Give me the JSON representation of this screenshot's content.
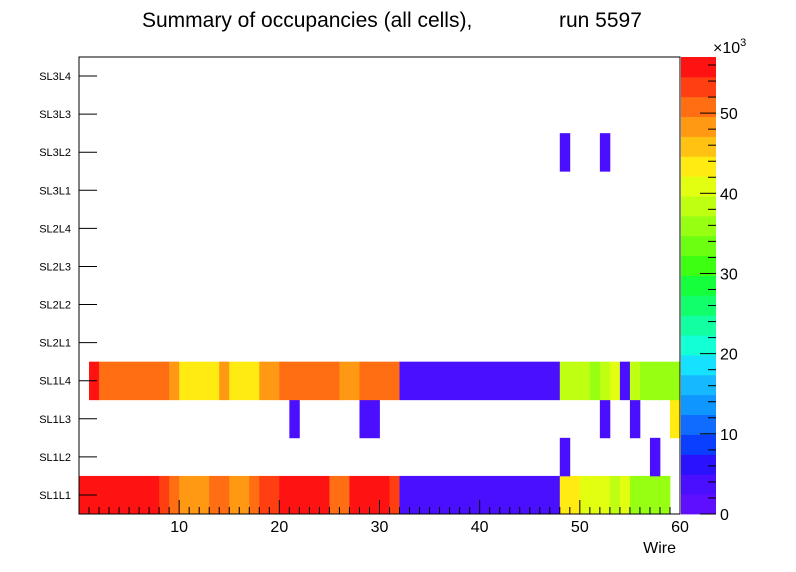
{
  "chart_data": {
    "type": "heatmap",
    "title": "Summary of occupancies (all cells),",
    "run_label": "run 5597",
    "xlabel": "Wire",
    "xlim": [
      0,
      60
    ],
    "x_ticks": [
      10,
      20,
      30,
      40,
      50,
      60
    ],
    "y_categories": [
      "SL1L1",
      "SL1L2",
      "SL1L3",
      "SL1L4",
      "SL2L1",
      "SL2L2",
      "SL2L3",
      "SL2L4",
      "SL3L1",
      "SL3L2",
      "SL3L3",
      "SL3L4"
    ],
    "z_label_prefix": "×10",
    "z_exponent": "3",
    "z_range": [
      0,
      57
    ],
    "z_ticks": [
      0,
      10,
      20,
      30,
      40,
      50
    ],
    "palette": [
      "#5e0fff",
      "#4b0fff",
      "#2b12ff",
      "#0b3fff",
      "#0f6cff",
      "#0f96ff",
      "#16b8ff",
      "#16e2ff",
      "#13ffd6",
      "#12ffa2",
      "#12ff6c",
      "#15ff3c",
      "#3cff12",
      "#6cff12",
      "#96ff12",
      "#bfff12",
      "#e2ff12",
      "#ffea12",
      "#ffc212",
      "#ff9812",
      "#ff6e12",
      "#ff3e12",
      "#ff1212"
    ],
    "rows": [
      {
        "layer": "SL1L1",
        "segments": [
          [
            0,
            8,
            56
          ],
          [
            8,
            9,
            53
          ],
          [
            9,
            10,
            51
          ],
          [
            10,
            13,
            49
          ],
          [
            13,
            15,
            51
          ],
          [
            15,
            17,
            49
          ],
          [
            17,
            18,
            51
          ],
          [
            18,
            20,
            53
          ],
          [
            20,
            25,
            56
          ],
          [
            25,
            27,
            51
          ],
          [
            27,
            31,
            55
          ],
          [
            31,
            32,
            54
          ],
          [
            32,
            48,
            4
          ],
          [
            48,
            50,
            43
          ],
          [
            50,
            53,
            42
          ],
          [
            53,
            54,
            38
          ],
          [
            54,
            55,
            42
          ],
          [
            55,
            59,
            37
          ]
        ]
      },
      {
        "layer": "SL1L2",
        "segments": [
          [
            48,
            49,
            4
          ],
          [
            57,
            58,
            4
          ]
        ]
      },
      {
        "layer": "SL1L3",
        "segments": [
          [
            21,
            22,
            4
          ],
          [
            28,
            30,
            4
          ],
          [
            52,
            53,
            4
          ],
          [
            55,
            56,
            4
          ],
          [
            59,
            60,
            44
          ]
        ]
      },
      {
        "layer": "SL1L4",
        "segments": [
          [
            1,
            2,
            55
          ],
          [
            2,
            9,
            51
          ],
          [
            9,
            10,
            49
          ],
          [
            10,
            14,
            44
          ],
          [
            14,
            15,
            49
          ],
          [
            15,
            18,
            44
          ],
          [
            18,
            20,
            48
          ],
          [
            20,
            26,
            51
          ],
          [
            26,
            28,
            49
          ],
          [
            28,
            32,
            51
          ],
          [
            32,
            48,
            4
          ],
          [
            48,
            51,
            38
          ],
          [
            51,
            52,
            36
          ],
          [
            52,
            53,
            38
          ],
          [
            53,
            54,
            41
          ],
          [
            54,
            55,
            4
          ],
          [
            55,
            56,
            38
          ],
          [
            56,
            60,
            36
          ]
        ]
      },
      {
        "layer": "SL2L1",
        "segments": []
      },
      {
        "layer": "SL2L2",
        "segments": []
      },
      {
        "layer": "SL2L3",
        "segments": []
      },
      {
        "layer": "SL2L4",
        "segments": []
      },
      {
        "layer": "SL3L1",
        "segments": []
      },
      {
        "layer": "SL3L2",
        "segments": [
          [
            48,
            49,
            4
          ],
          [
            52,
            53,
            4
          ]
        ]
      },
      {
        "layer": "SL3L3",
        "segments": []
      },
      {
        "layer": "SL3L4",
        "segments": []
      }
    ]
  }
}
